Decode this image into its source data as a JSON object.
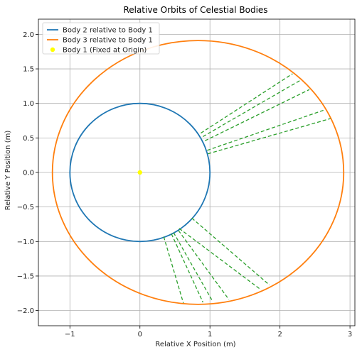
{
  "chart_data": {
    "type": "line",
    "title": "Relative Orbits of Celestial Bodies",
    "xlabel": "Relative X Position (m)",
    "ylabel": "Relative Y Position (m)",
    "xlim": [
      -1.45,
      3.07
    ],
    "ylim": [
      -2.22,
      2.22
    ],
    "xticks": [
      -1,
      0,
      1,
      2,
      3
    ],
    "yticks": [
      -2.0,
      -1.5,
      -1.0,
      -0.5,
      0.0,
      0.5,
      1.0,
      1.5,
      2.0
    ],
    "xtick_labels": [
      "−1",
      "0",
      "1",
      "2",
      "3"
    ],
    "ytick_labels": [
      "−2.0",
      "−1.5",
      "−1.0",
      "−0.5",
      "0.0",
      "0.5",
      "1.0",
      "1.5",
      "2.0"
    ],
    "grid": true,
    "legend_position": "top-left",
    "series": [
      {
        "name": "Body 2 relative to Body 1",
        "kind": "circle",
        "color": "#1f77b4",
        "center": [
          0,
          0
        ],
        "radius_x": 1.0,
        "radius_y": 1.0
      },
      {
        "name": "Body 3 relative to Body 1",
        "kind": "ellipse",
        "color": "#ff7f0e",
        "center": [
          0.83,
          0.0
        ],
        "radius_x": 2.08,
        "radius_y": 1.91
      },
      {
        "name": "Body 1 (Fixed at Origin)",
        "kind": "point",
        "color": "#ffff00",
        "x": 0,
        "y": 0
      }
    ],
    "connections": {
      "color": "#2ca02c",
      "style": "dashed",
      "segments": [
        {
          "from": [
            0.87,
            0.57
          ],
          "to": [
            2.18,
            1.43
          ]
        },
        {
          "from": [
            0.9,
            0.52
          ],
          "to": [
            2.3,
            1.34
          ]
        },
        {
          "from": [
            0.93,
            0.46
          ],
          "to": [
            2.42,
            1.2
          ]
        },
        {
          "from": [
            0.96,
            0.32
          ],
          "to": [
            2.62,
            0.9
          ]
        },
        {
          "from": [
            0.97,
            0.27
          ],
          "to": [
            2.72,
            0.78
          ]
        },
        {
          "from": [
            0.74,
            -0.66
          ],
          "to": [
            1.85,
            -1.63
          ]
        },
        {
          "from": [
            0.56,
            -0.81
          ],
          "to": [
            1.73,
            -1.7
          ]
        },
        {
          "from": [
            0.55,
            -0.84
          ],
          "to": [
            1.27,
            -1.84
          ]
        },
        {
          "from": [
            0.48,
            -0.87
          ],
          "to": [
            1.04,
            -1.87
          ]
        },
        {
          "from": [
            0.45,
            -0.89
          ],
          "to": [
            0.9,
            -1.88
          ]
        },
        {
          "from": [
            0.34,
            -0.93
          ],
          "to": [
            0.62,
            -1.89
          ]
        }
      ]
    }
  }
}
